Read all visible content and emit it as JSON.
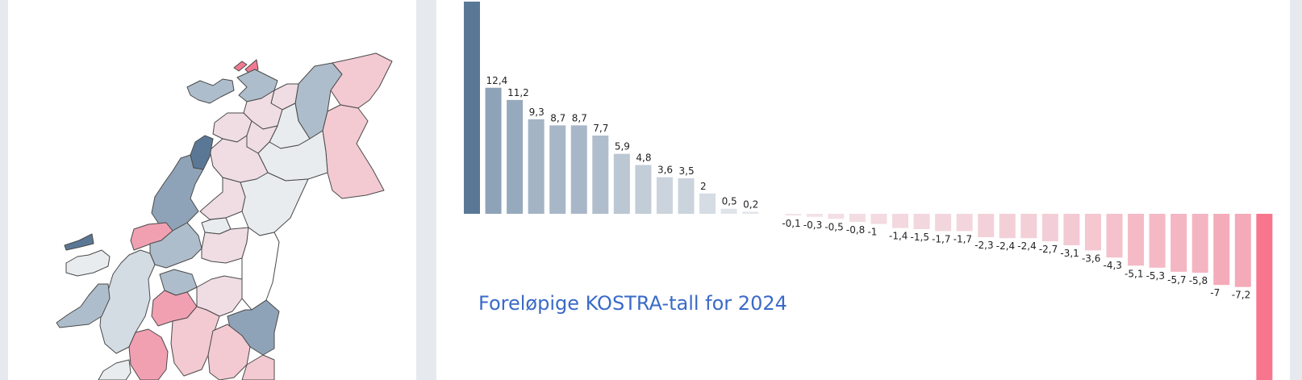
{
  "map": {
    "palette": {
      "dark_blue": "#5a7896",
      "mid_blue": "#8fa3b8",
      "light_blue": "#aebdcb",
      "pale_blue": "#d3dbe3",
      "grey": "#e9ecef",
      "pale_pink": "#efdde3",
      "light_pink": "#f3c9d2",
      "mid_pink": "#f1a0b2",
      "pink": "#f07a91",
      "white": "#ffffff",
      "border": "#4a4a4a"
    }
  },
  "chart_data": {
    "type": "bar",
    "title": "",
    "subtitle": "Foreløpige KOSTRA-tall for 2024",
    "xlabel": "",
    "ylabel": "",
    "values": [
      null,
      12.4,
      11.2,
      9.3,
      8.7,
      8.7,
      7.7,
      5.9,
      4.8,
      3.6,
      3.5,
      2,
      0.5,
      0.2,
      null,
      -0.1,
      -0.3,
      -0.5,
      -0.8,
      -1,
      -1.4,
      -1.5,
      -1.7,
      -1.7,
      -2.3,
      -2.4,
      -2.4,
      -2.7,
      -3.1,
      -3.6,
      -4.3,
      -5.1,
      -5.3,
      -5.7,
      -5.8,
      -7,
      -7.2,
      null
    ],
    "labels": [
      "",
      "12,4",
      "11,2",
      "9,3",
      "8,7",
      "8,7",
      "7,7",
      "5,9",
      "4,8",
      "3,6",
      "3,5",
      "2",
      "0,5",
      "0,2",
      "",
      "-0,1",
      "-0,3",
      "-0,5",
      "-0,8",
      "-1",
      "-1,4",
      "-1,5",
      "-1,7",
      "-1,7",
      "-2,3",
      "-2,4",
      "-2,4",
      "-2,7",
      "-3,1",
      "-3,6",
      "-4,3",
      "-5,1",
      "-5,3",
      "-5,7",
      "-5,8",
      "-7",
      "-7,2",
      ""
    ],
    "colors": {
      "max_bar": "#5a7896",
      "min_bar": "#f7768e",
      "positive_strong": "#8fa3b8",
      "positive_weak": "#e3e7ec",
      "negative_weak": "#f3e3e8",
      "negative_strong": "#f4aab9"
    }
  }
}
